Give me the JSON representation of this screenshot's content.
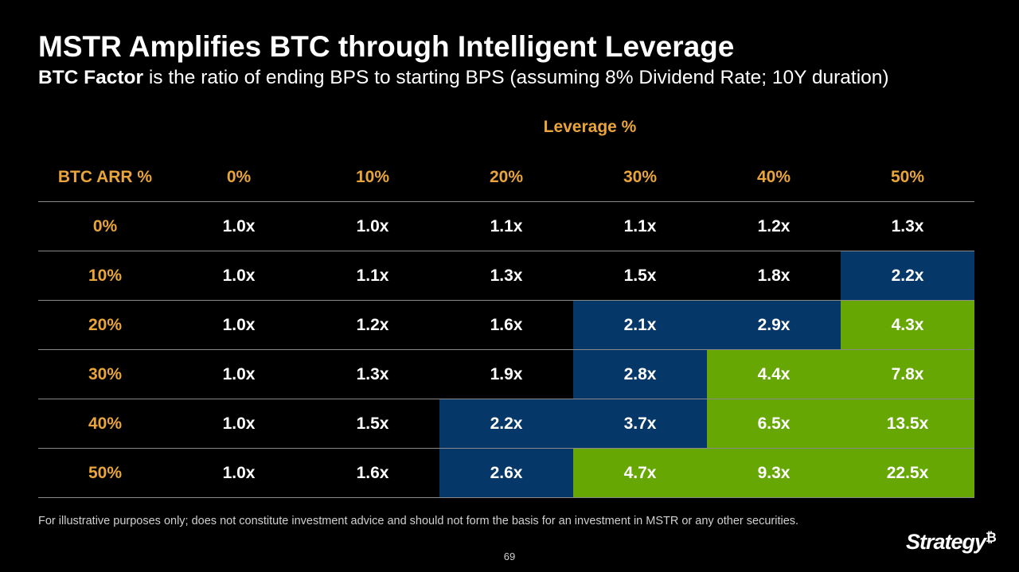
{
  "title": "MSTR Amplifies BTC through Intelligent Leverage",
  "subtitle": {
    "bold": "BTC Factor",
    "rest": " is the ratio of ending BPS to starting BPS (assuming 8% Dividend Rate; 10Y duration)"
  },
  "leverage_label": "Leverage %",
  "table": {
    "corner_header": "BTC ARR %",
    "columns": [
      "0%",
      "10%",
      "20%",
      "30%",
      "40%",
      "50%"
    ],
    "rows": [
      {
        "label": "0%",
        "cells": [
          {
            "v": "1.0x",
            "c": ""
          },
          {
            "v": "1.0x",
            "c": ""
          },
          {
            "v": "1.1x",
            "c": ""
          },
          {
            "v": "1.1x",
            "c": ""
          },
          {
            "v": "1.2x",
            "c": ""
          },
          {
            "v": "1.3x",
            "c": ""
          }
        ]
      },
      {
        "label": "10%",
        "cells": [
          {
            "v": "1.0x",
            "c": ""
          },
          {
            "v": "1.1x",
            "c": ""
          },
          {
            "v": "1.3x",
            "c": ""
          },
          {
            "v": "1.5x",
            "c": ""
          },
          {
            "v": "1.8x",
            "c": ""
          },
          {
            "v": "2.2x",
            "c": "blue"
          }
        ]
      },
      {
        "label": "20%",
        "cells": [
          {
            "v": "1.0x",
            "c": ""
          },
          {
            "v": "1.2x",
            "c": ""
          },
          {
            "v": "1.6x",
            "c": ""
          },
          {
            "v": "2.1x",
            "c": "blue"
          },
          {
            "v": "2.9x",
            "c": "blue"
          },
          {
            "v": "4.3x",
            "c": "green"
          }
        ]
      },
      {
        "label": "30%",
        "cells": [
          {
            "v": "1.0x",
            "c": ""
          },
          {
            "v": "1.3x",
            "c": ""
          },
          {
            "v": "1.9x",
            "c": ""
          },
          {
            "v": "2.8x",
            "c": "blue"
          },
          {
            "v": "4.4x",
            "c": "green"
          },
          {
            "v": "7.8x",
            "c": "green"
          }
        ]
      },
      {
        "label": "40%",
        "cells": [
          {
            "v": "1.0x",
            "c": ""
          },
          {
            "v": "1.5x",
            "c": ""
          },
          {
            "v": "2.2x",
            "c": "blue"
          },
          {
            "v": "3.7x",
            "c": "blue"
          },
          {
            "v": "6.5x",
            "c": "green"
          },
          {
            "v": "13.5x",
            "c": "green"
          }
        ]
      },
      {
        "label": "50%",
        "cells": [
          {
            "v": "1.0x",
            "c": ""
          },
          {
            "v": "1.6x",
            "c": ""
          },
          {
            "v": "2.6x",
            "c": "blue"
          },
          {
            "v": "4.7x",
            "c": "green"
          },
          {
            "v": "9.3x",
            "c": "green"
          },
          {
            "v": "22.5x",
            "c": "green"
          }
        ]
      }
    ]
  },
  "disclaimer": "For illustrative purposes only; does not constitute investment advice and should not form the basis for an investment in MSTR or any other securities.",
  "page_number": "69",
  "logo": {
    "text": "Strategy",
    "mark": "₿"
  },
  "colors": {
    "accent": "#e9a53b",
    "blue": "#053769",
    "green": "#66a703",
    "background": "#000000"
  }
}
